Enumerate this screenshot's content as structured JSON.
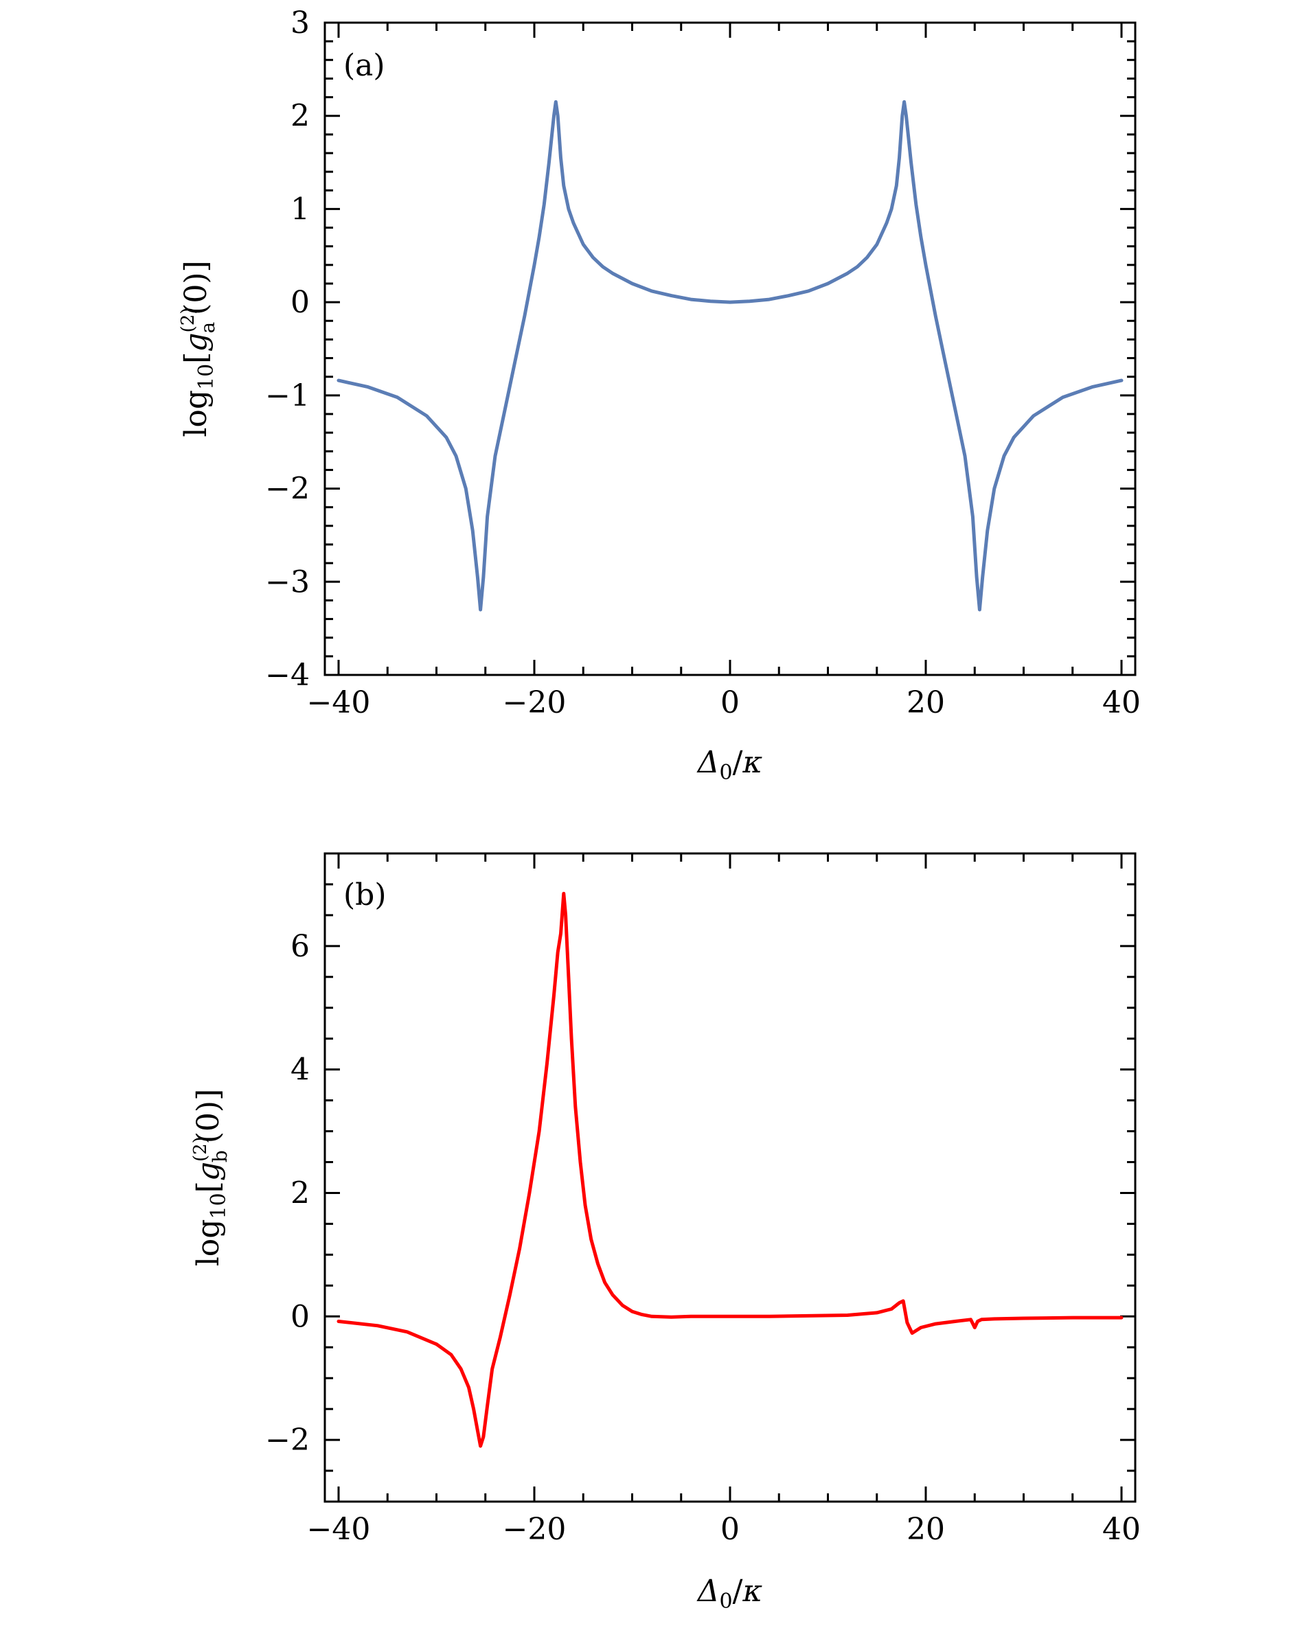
{
  "chart_data": [
    {
      "type": "line",
      "panel_label": "(a)",
      "xlabel": "Δ0/κ",
      "ylabel": "log10[g(2)a(0)]",
      "xlim": [
        -40,
        40
      ],
      "ylim": [
        -4,
        3
      ],
      "xticks": [
        -40,
        -20,
        0,
        20,
        40
      ],
      "yticks": [
        -4,
        -3,
        -2,
        -1,
        0,
        1,
        2,
        3
      ],
      "series": [
        {
          "color": "#5b7db5",
          "x": [
            -40,
            -37,
            -34,
            -31,
            -29,
            -28,
            -27,
            -26.3,
            -25.8,
            -25.5,
            -25.2,
            -24.8,
            -24,
            -23,
            -22,
            -21,
            -20,
            -19.5,
            -19,
            -18.5,
            -18,
            -17.8,
            -17.6,
            -17.3,
            -17,
            -16.5,
            -16,
            -15,
            -14,
            -13,
            -12,
            -10,
            -8,
            -6,
            -4,
            -2,
            0,
            2,
            4,
            6,
            8,
            10,
            12,
            13,
            14,
            15,
            16,
            16.5,
            17,
            17.3,
            17.6,
            17.8,
            18,
            18.5,
            19,
            19.5,
            20,
            21,
            22,
            23,
            24,
            24.8,
            25.2,
            25.5,
            25.8,
            26.3,
            27,
            28,
            29,
            31,
            34,
            37,
            40
          ],
          "y": [
            -0.84,
            -0.91,
            -1.02,
            -1.22,
            -1.45,
            -1.65,
            -2.0,
            -2.45,
            -2.95,
            -3.3,
            -2.95,
            -2.3,
            -1.65,
            -1.15,
            -0.65,
            -0.15,
            0.4,
            0.7,
            1.05,
            1.5,
            2.0,
            2.15,
            2.0,
            1.55,
            1.25,
            1.0,
            0.85,
            0.62,
            0.48,
            0.38,
            0.31,
            0.2,
            0.12,
            0.07,
            0.03,
            0.01,
            0.0,
            0.01,
            0.03,
            0.07,
            0.12,
            0.2,
            0.31,
            0.38,
            0.48,
            0.62,
            0.85,
            1.0,
            1.25,
            1.55,
            2.0,
            2.15,
            2.0,
            1.5,
            1.05,
            0.7,
            0.4,
            -0.15,
            -0.65,
            -1.15,
            -1.65,
            -2.3,
            -2.95,
            -3.3,
            -2.95,
            -2.45,
            -2.0,
            -1.65,
            -1.45,
            -1.22,
            -1.02,
            -0.91,
            -0.84
          ]
        }
      ]
    },
    {
      "type": "line",
      "panel_label": "(b)",
      "xlabel": "Δ0/κ",
      "ylabel": "log10[g(2)b(0)]",
      "xlim": [
        -40,
        40
      ],
      "ylim": [
        -3,
        7.5
      ],
      "xticks": [
        -40,
        -20,
        0,
        20,
        40
      ],
      "yticks": [
        -2,
        0,
        2,
        4,
        6
      ],
      "series": [
        {
          "color": "#ff0000",
          "x": [
            -40,
            -36,
            -33,
            -30,
            -28.5,
            -27.5,
            -26.7,
            -26.2,
            -25.8,
            -25.5,
            -25.2,
            -24.8,
            -24.3,
            -23.5,
            -22.5,
            -21.5,
            -20.5,
            -19.5,
            -18.7,
            -18.0,
            -17.6,
            -17.3,
            -17.0,
            -16.8,
            -16.5,
            -16.2,
            -15.8,
            -15.3,
            -14.8,
            -14.2,
            -13.5,
            -12.8,
            -12,
            -11,
            -10,
            -9,
            -8,
            -6,
            -4,
            -2,
            0,
            4,
            8,
            12,
            15,
            16.5,
            17.3,
            17.7,
            18.1,
            18.6,
            19.5,
            21,
            23,
            24.6,
            25.0,
            25.3,
            25.7,
            27,
            30,
            35,
            40
          ],
          "y": [
            -0.08,
            -0.15,
            -0.25,
            -0.45,
            -0.62,
            -0.85,
            -1.15,
            -1.5,
            -1.85,
            -2.1,
            -1.95,
            -1.45,
            -0.85,
            -0.35,
            0.35,
            1.1,
            2.0,
            3.0,
            4.1,
            5.2,
            5.9,
            6.2,
            6.85,
            6.5,
            5.5,
            4.5,
            3.4,
            2.5,
            1.8,
            1.25,
            0.85,
            0.55,
            0.35,
            0.18,
            0.08,
            0.03,
            0.0,
            -0.01,
            0.0,
            0.0,
            0.0,
            0.0,
            0.01,
            0.02,
            0.06,
            0.12,
            0.22,
            0.25,
            -0.1,
            -0.27,
            -0.18,
            -0.12,
            -0.08,
            -0.05,
            -0.18,
            -0.08,
            -0.05,
            -0.04,
            -0.03,
            -0.02,
            -0.02
          ]
        }
      ]
    }
  ]
}
